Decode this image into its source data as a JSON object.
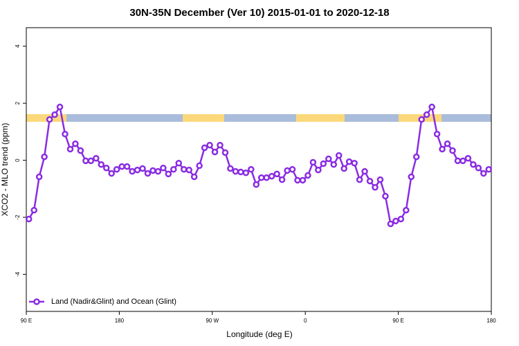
{
  "chart_data": {
    "type": "line",
    "title": "30N-35N December (Ver 10)   2015-01-01 to 2020-12-18",
    "xlabel": "Longitude (deg E)",
    "ylabel": "XCO2 - MLO trend (ppm)",
    "xlim": [
      90,
      540
    ],
    "ylim": [
      -5.3,
      4.65
    ],
    "xticks": [
      {
        "value": 90,
        "label": "90 E"
      },
      180,
      {
        "value": 270,
        "label": "90 W"
      },
      {
        "value": 360,
        "label": "0"
      },
      {
        "value": 450,
        "label": "90 E"
      },
      {
        "value": 540,
        "label": "180"
      }
    ],
    "yticks": [
      -4,
      -2,
      0,
      2,
      4
    ],
    "legend": "bottom-left",
    "grid": false,
    "x": [
      92.5,
      97.5,
      102.5,
      107.5,
      112.5,
      117.5,
      122.5,
      127.5,
      132.5,
      137.5,
      142.5,
      147.5,
      152.5,
      157.5,
      162.5,
      167.5,
      172.5,
      177.5,
      182.5,
      187.5,
      192.5,
      197.5,
      202.5,
      207.5,
      212.5,
      217.5,
      222.5,
      227.5,
      232.5,
      237.5,
      242.5,
      247.5,
      252.5,
      257.5,
      262.5,
      267.5,
      272.5,
      277.5,
      282.5,
      287.5,
      292.5,
      297.5,
      302.5,
      307.5,
      312.5,
      317.5,
      322.5,
      327.5,
      332.5,
      337.5,
      342.5,
      347.5,
      352.5,
      357.5,
      362.5,
      367.5,
      372.5,
      377.5,
      382.5,
      387.5,
      392.5,
      397.5,
      402.5,
      407.5,
      412.5,
      417.5,
      422.5,
      427.5,
      432.5,
      437.5,
      442.5,
      447.5,
      452.5,
      457.5,
      462.5,
      467.5,
      472.5,
      477.5,
      482.5,
      487.5,
      492.5,
      497.5,
      502.5,
      507.5,
      512.5,
      517.5,
      522.5,
      527.5,
      532.5,
      537.5
    ],
    "series": [
      {
        "name": "Land (Nadir&Glint) and Ocean (Glint)",
        "color": "#8a2be2",
        "values": [
          -2.06,
          -1.75,
          -0.58,
          0.12,
          1.43,
          1.6,
          1.87,
          0.92,
          0.39,
          0.58,
          0.34,
          -0.02,
          -0.02,
          0.07,
          -0.15,
          -0.27,
          -0.46,
          -0.32,
          -0.22,
          -0.22,
          -0.39,
          -0.34,
          -0.29,
          -0.46,
          -0.36,
          -0.39,
          -0.27,
          -0.48,
          -0.32,
          -0.1,
          -0.32,
          -0.34,
          -0.58,
          -0.19,
          0.44,
          0.53,
          0.29,
          0.53,
          0.27,
          -0.29,
          -0.39,
          -0.41,
          -0.44,
          -0.32,
          -0.85,
          -0.61,
          -0.61,
          -0.56,
          -0.48,
          -0.68,
          -0.36,
          -0.32,
          -0.7,
          -0.7,
          -0.53,
          -0.07,
          -0.34,
          -0.12,
          0.05,
          -0.15,
          0.17,
          -0.29,
          -0.05,
          -0.1,
          -0.68,
          -0.39,
          -0.73,
          -0.95,
          -0.68,
          -1.26,
          -2.23,
          -2.13,
          -2.06,
          -1.75,
          -0.58,
          0.12,
          1.43,
          1.6,
          1.87,
          0.92,
          0.39,
          0.58,
          0.34,
          -0.02,
          -0.02,
          0.07,
          -0.15,
          -0.27,
          -0.46,
          -0.32
        ]
      }
    ]
  }
}
